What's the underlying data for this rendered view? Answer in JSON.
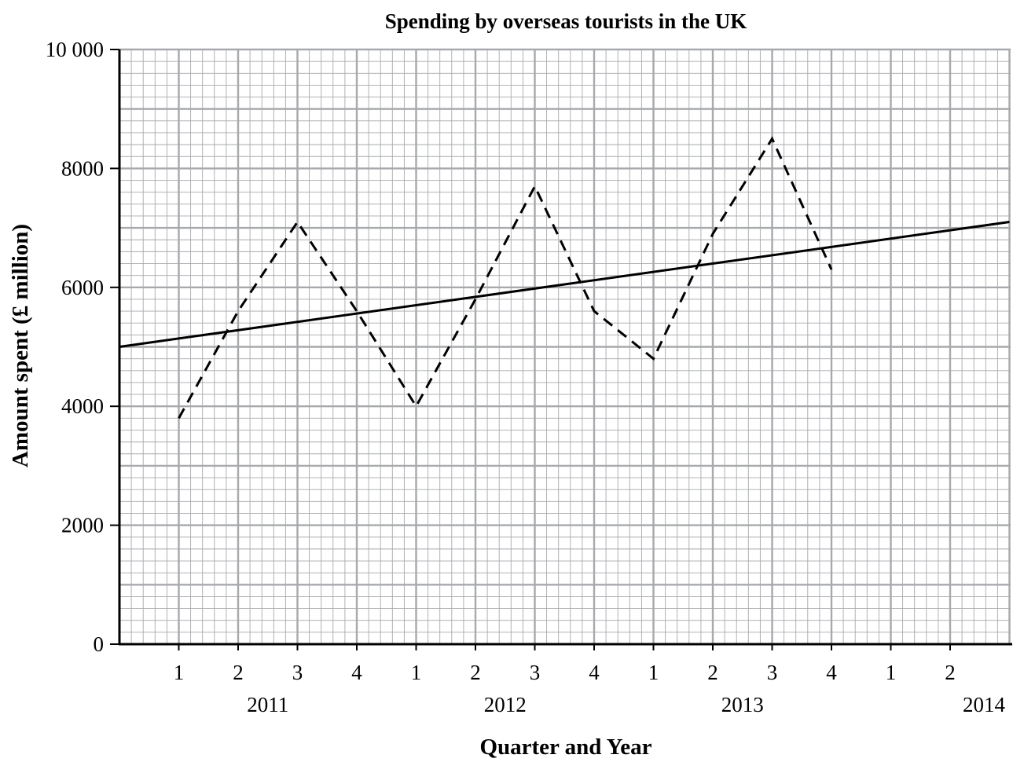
{
  "chart_data": {
    "type": "line",
    "title": "Spending by overseas tourists in the UK",
    "xlabel": "Quarter and Year",
    "ylabel": "Amount spent (£ million)",
    "ylim": [
      0,
      10000
    ],
    "yticks": [
      "0",
      "2000",
      "4000",
      "6000",
      "8000",
      "10 000"
    ],
    "ytick_values": [
      0,
      2000,
      4000,
      6000,
      8000,
      10000
    ],
    "quarter_labels": [
      "1",
      "2",
      "3",
      "4",
      "1",
      "2",
      "3",
      "4",
      "1",
      "2",
      "3",
      "4",
      "1",
      "2"
    ],
    "year_labels": [
      "2011",
      "2012",
      "2013",
      "2014"
    ],
    "grid": true,
    "series": [
      {
        "style": "dashed",
        "x": [
          "2011 Q1",
          "2011 Q2",
          "2011 Q3",
          "2011 Q4",
          "2012 Q1",
          "2012 Q2",
          "2012 Q3",
          "2012 Q4",
          "2013 Q1",
          "2013 Q2",
          "2013 Q3",
          "2013 Q4"
        ],
        "x_index": [
          1,
          2,
          3,
          4,
          5,
          6,
          7,
          8,
          9,
          10,
          11,
          12
        ],
        "values": [
          3800,
          5600,
          7100,
          5600,
          4000,
          5800,
          7700,
          5600,
          4800,
          6900,
          8500,
          6300
        ]
      },
      {
        "style": "solid",
        "kind": "trend line",
        "x_index": [
          0,
          15
        ],
        "values": [
          5000,
          7100
        ]
      }
    ]
  }
}
